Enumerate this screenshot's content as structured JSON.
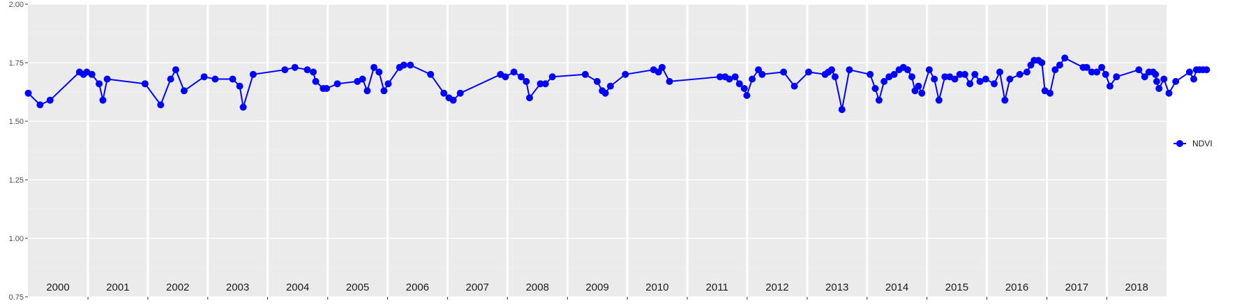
{
  "chart_data": {
    "type": "line",
    "xlim": [
      "2000-01-01",
      "2018-12-31"
    ],
    "ylim": [
      0.75,
      2.0
    ],
    "yticks": [
      "0.75",
      "1.00",
      "1.25",
      "1.50",
      "1.75",
      "2.00"
    ],
    "year_labels": [
      "2000",
      "2001",
      "2002",
      "2003",
      "2004",
      "2005",
      "2006",
      "2007",
      "2008",
      "2009",
      "2010",
      "2011",
      "2012",
      "2013",
      "2014",
      "2015",
      "2016",
      "2017",
      "2018"
    ],
    "grid": true,
    "legend_position": "right",
    "colors": {
      "SWIR": "#ff0000",
      "NDVI": "#0000ff",
      "NDWI": "#006400"
    },
    "series": [
      {
        "name": "NDVI",
        "points": [
          [
            "2000-01-03",
            1.62
          ],
          [
            "2000-03-15",
            1.57
          ],
          [
            "2000-05-15",
            1.59
          ],
          [
            "2000-11-10",
            1.71
          ],
          [
            "2000-12-05",
            1.7
          ],
          [
            "2000-12-25",
            1.71
          ],
          [
            "2001-01-25",
            1.7
          ],
          [
            "2001-03-10",
            1.66
          ],
          [
            "2001-04-02",
            1.59
          ],
          [
            "2001-04-28",
            1.68
          ],
          [
            "2001-12-15",
            1.66
          ],
          [
            "2002-03-20",
            1.57
          ],
          [
            "2002-05-20",
            1.68
          ],
          [
            "2002-06-20",
            1.72
          ],
          [
            "2002-08-10",
            1.63
          ],
          [
            "2002-12-10",
            1.69
          ],
          [
            "2003-02-15",
            1.68
          ],
          [
            "2003-06-02",
            1.68
          ],
          [
            "2003-07-15",
            1.65
          ],
          [
            "2003-08-05",
            1.56
          ],
          [
            "2003-10-05",
            1.7
          ],
          [
            "2004-04-15",
            1.72
          ],
          [
            "2004-06-15",
            1.73
          ],
          [
            "2004-08-30",
            1.72
          ],
          [
            "2004-10-05",
            1.71
          ],
          [
            "2004-10-20",
            1.67
          ],
          [
            "2004-12-05",
            1.64
          ],
          [
            "2004-12-25",
            1.64
          ],
          [
            "2005-03-01",
            1.66
          ],
          [
            "2005-07-01",
            1.67
          ],
          [
            "2005-08-01",
            1.68
          ],
          [
            "2005-08-30",
            1.63
          ],
          [
            "2005-10-10",
            1.73
          ],
          [
            "2005-11-10",
            1.71
          ],
          [
            "2005-12-10",
            1.63
          ],
          [
            "2006-01-05",
            1.66
          ],
          [
            "2006-03-15",
            1.73
          ],
          [
            "2006-04-10",
            1.74
          ],
          [
            "2006-05-20",
            1.74
          ],
          [
            "2006-09-20",
            1.7
          ],
          [
            "2006-12-10",
            1.62
          ],
          [
            "2007-01-10",
            1.6
          ],
          [
            "2007-02-05",
            1.59
          ],
          [
            "2007-03-20",
            1.62
          ],
          [
            "2007-11-20",
            1.7
          ],
          [
            "2007-12-20",
            1.69
          ],
          [
            "2008-02-10",
            1.71
          ],
          [
            "2008-03-25",
            1.69
          ],
          [
            "2008-04-25",
            1.67
          ],
          [
            "2008-05-15",
            1.6
          ],
          [
            "2008-07-20",
            1.66
          ],
          [
            "2008-08-20",
            1.66
          ],
          [
            "2008-10-01",
            1.69
          ],
          [
            "2009-04-20",
            1.7
          ],
          [
            "2009-07-01",
            1.67
          ],
          [
            "2009-08-01",
            1.63
          ],
          [
            "2009-08-20",
            1.62
          ],
          [
            "2009-09-20",
            1.65
          ],
          [
            "2009-12-20",
            1.7
          ],
          [
            "2010-06-10",
            1.72
          ],
          [
            "2010-07-10",
            1.71
          ],
          [
            "2010-08-01",
            1.73
          ],
          [
            "2010-09-15",
            1.67
          ],
          [
            "2011-07-20",
            1.69
          ],
          [
            "2011-08-20",
            1.69
          ],
          [
            "2011-09-15",
            1.68
          ],
          [
            "2011-10-20",
            1.69
          ],
          [
            "2011-11-15",
            1.66
          ],
          [
            "2011-12-15",
            1.64
          ],
          [
            "2011-12-30",
            1.61
          ],
          [
            "2012-02-01",
            1.68
          ],
          [
            "2012-03-10",
            1.72
          ],
          [
            "2012-04-01",
            1.7
          ],
          [
            "2012-08-10",
            1.71
          ],
          [
            "2012-10-15",
            1.65
          ],
          [
            "2013-01-10",
            1.71
          ],
          [
            "2013-04-20",
            1.7
          ],
          [
            "2013-05-10",
            1.71
          ],
          [
            "2013-05-30",
            1.72
          ],
          [
            "2013-06-20",
            1.69
          ],
          [
            "2013-08-01",
            1.55
          ],
          [
            "2013-09-15",
            1.72
          ],
          [
            "2014-01-20",
            1.7
          ],
          [
            "2014-02-20",
            1.64
          ],
          [
            "2014-03-15",
            1.59
          ],
          [
            "2014-04-15",
            1.67
          ],
          [
            "2014-05-15",
            1.69
          ],
          [
            "2014-06-15",
            1.7
          ],
          [
            "2014-07-15",
            1.72
          ],
          [
            "2014-08-10",
            1.73
          ],
          [
            "2014-09-05",
            1.72
          ],
          [
            "2014-10-01",
            1.69
          ],
          [
            "2014-10-20",
            1.63
          ],
          [
            "2014-11-10",
            1.65
          ],
          [
            "2014-12-01",
            1.62
          ],
          [
            "2015-01-15",
            1.72
          ],
          [
            "2015-02-15",
            1.68
          ],
          [
            "2015-03-15",
            1.59
          ],
          [
            "2015-04-20",
            1.69
          ],
          [
            "2015-05-20",
            1.69
          ],
          [
            "2015-06-20",
            1.68
          ],
          [
            "2015-07-20",
            1.7
          ],
          [
            "2015-08-20",
            1.7
          ],
          [
            "2015-09-20",
            1.66
          ],
          [
            "2015-10-20",
            1.7
          ],
          [
            "2015-11-20",
            1.67
          ],
          [
            "2015-12-25",
            1.68
          ],
          [
            "2016-02-15",
            1.66
          ],
          [
            "2016-03-20",
            1.71
          ],
          [
            "2016-04-20",
            1.59
          ],
          [
            "2016-05-20",
            1.68
          ],
          [
            "2016-07-20",
            1.7
          ],
          [
            "2016-09-01",
            1.71
          ],
          [
            "2016-09-25",
            1.74
          ],
          [
            "2016-10-15",
            1.76
          ],
          [
            "2016-11-10",
            1.76
          ],
          [
            "2016-12-01",
            1.75
          ],
          [
            "2016-12-20",
            1.63
          ],
          [
            "2017-01-20",
            1.62
          ],
          [
            "2017-02-20",
            1.72
          ],
          [
            "2017-03-20",
            1.74
          ],
          [
            "2017-04-20",
            1.77
          ],
          [
            "2017-08-10",
            1.73
          ],
          [
            "2017-09-01",
            1.73
          ],
          [
            "2017-10-01",
            1.71
          ],
          [
            "2017-11-01",
            1.71
          ],
          [
            "2017-12-01",
            1.73
          ],
          [
            "2017-12-25",
            1.7
          ],
          [
            "2018-01-20",
            1.65
          ],
          [
            "2018-03-01",
            1.69
          ],
          [
            "2018-07-15",
            1.72
          ],
          [
            "2018-08-20",
            1.69
          ],
          [
            "2018-09-15",
            1.71
          ],
          [
            "2018-10-10",
            1.71
          ],
          [
            "2018-10-25",
            1.7
          ],
          [
            "2018-11-01",
            1.67
          ],
          [
            "2018-11-15",
            1.64
          ],
          [
            "2018-12-15",
            1.68
          ],
          [
            "2019-01-15",
            1.62
          ],
          [
            "2019-02-25",
            1.67
          ],
          [
            "2019-05-20",
            1.71
          ],
          [
            "2019-06-15",
            1.68
          ],
          [
            "2019-07-01",
            1.72
          ],
          [
            "2019-07-20",
            1.72
          ],
          [
            "2019-08-10",
            1.72
          ],
          [
            "2019-09-01",
            1.72
          ]
        ]
      }
    ]
  }
}
